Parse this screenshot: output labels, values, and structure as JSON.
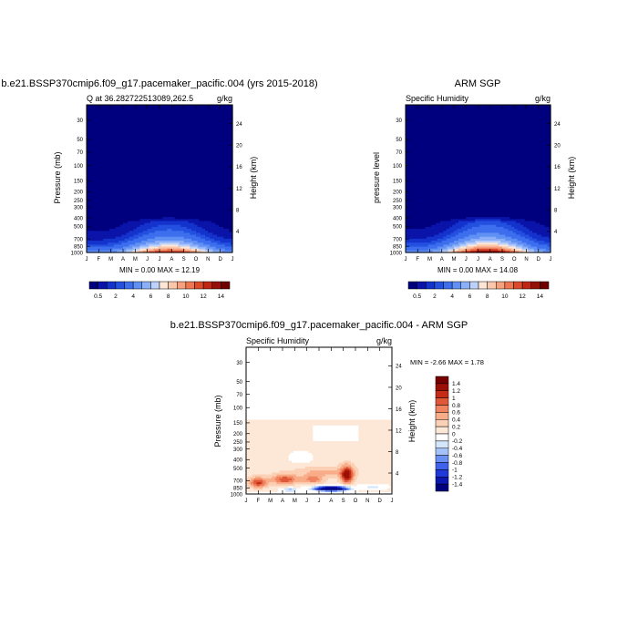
{
  "chart_data": [
    {
      "type": "heatmap",
      "title": "b.e21.BSSP370cmip6.f09_g17.pacemaker_pacific.004 (yrs 2015-2018)",
      "left_label": "Q at 36.282722513089,262.5",
      "units": "g/kg",
      "ylabel": "Pressure (mb)",
      "ylabel_right": "Height (km)",
      "xticks": [
        "J",
        "F",
        "M",
        "A",
        "M",
        "J",
        "J",
        "A",
        "S",
        "O",
        "N",
        "D",
        "J"
      ],
      "yticks": [
        "30",
        "50",
        "70",
        "100",
        "150",
        "200",
        "250",
        "300",
        "400",
        "500",
        "700",
        "850",
        "1000"
      ],
      "yticks_right": [
        "24",
        "20",
        "16",
        "12",
        "8",
        "4"
      ],
      "ylim": [
        1000,
        20
      ],
      "stats": "MIN =   0.00 MAX =  12.19",
      "min": 0.0,
      "max": 12.19,
      "colorbar": {
        "labels": [
          "0.5",
          "2",
          "4",
          "6",
          "8",
          "10",
          "12",
          "14"
        ]
      }
    },
    {
      "type": "heatmap",
      "title": "ARM SGP",
      "left_label": "Specific Humidity",
      "units": "g/kg",
      "ylabel": "pressure level",
      "ylabel_right": "Height (km)",
      "xticks": [
        "J",
        "F",
        "M",
        "A",
        "M",
        "J",
        "J",
        "A",
        "S",
        "O",
        "N",
        "D",
        "J"
      ],
      "yticks": [
        "30",
        "50",
        "70",
        "100",
        "150",
        "200",
        "250",
        "300",
        "400",
        "500",
        "700",
        "850",
        "1000"
      ],
      "yticks_right": [
        "24",
        "20",
        "16",
        "12",
        "8",
        "4"
      ],
      "ylim": [
        1000,
        20
      ],
      "stats": "MIN =   0.00 MAX =  14.08",
      "min": 0.0,
      "max": 14.08,
      "colorbar": {
        "labels": [
          "0.5",
          "2",
          "4",
          "6",
          "8",
          "10",
          "12",
          "14"
        ]
      }
    },
    {
      "type": "heatmap",
      "title": "b.e21.BSSP370cmip6.f09_g17.pacemaker_pacific.004 - ARM SGP",
      "left_label": "Specific Humidity",
      "units": "g/kg",
      "ylabel": "Pressure (mb)",
      "ylabel_right": "Height (km)",
      "xticks": [
        "J",
        "F",
        "M",
        "A",
        "M",
        "J",
        "J",
        "A",
        "S",
        "O",
        "N",
        "D",
        "J"
      ],
      "yticks": [
        "30",
        "50",
        "70",
        "100",
        "150",
        "200",
        "250",
        "300",
        "400",
        "500",
        "700",
        "850",
        "1000"
      ],
      "yticks_right": [
        "24",
        "20",
        "16",
        "12",
        "8",
        "4"
      ],
      "ylim": [
        1000,
        20
      ],
      "stats": "MIN =  -2.66 MAX =   1.78",
      "min": -2.66,
      "max": 1.78,
      "colorbar": {
        "labels": [
          "1.4",
          "1.2",
          "1",
          "0.8",
          "0.6",
          "0.4",
          "0.2",
          "0",
          "-0.2",
          "-0.4",
          "-0.6",
          "-0.8",
          "-1",
          "-1.2",
          "-1.4"
        ]
      }
    }
  ],
  "colors": {
    "seq": [
      "#00007f",
      "#0a14a8",
      "#1432cc",
      "#2450e0",
      "#3c6eee",
      "#6090f4",
      "#8cb0f8",
      "#bcd2fb",
      "#fde6d6",
      "#fbc8ac",
      "#f6a07c",
      "#ee7650",
      "#dc4a2c",
      "#c02614",
      "#961008",
      "#700000"
    ],
    "div": [
      "#00007f",
      "#0a18b0",
      "#1f3ad8",
      "#3f62ec",
      "#6a90f4",
      "#a4c2fa",
      "#d4e6fb",
      "#ffffff",
      "#fde8d8",
      "#fcd0b4",
      "#f8ac88",
      "#f08460",
      "#e05838",
      "#c42c18",
      "#9a1006",
      "#760000"
    ]
  }
}
